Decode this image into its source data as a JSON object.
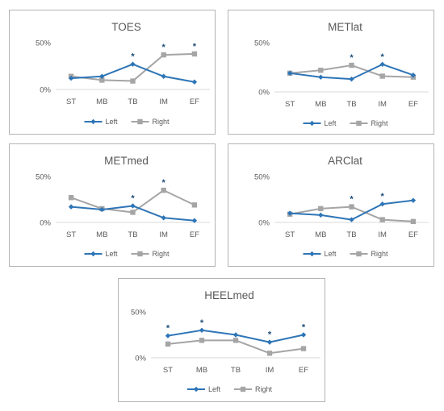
{
  "colors": {
    "left": "#2e75b6",
    "right": "#a5a5a5",
    "star": "#1f4e79",
    "axis": "#d9d9d9",
    "text": "#595959"
  },
  "chart_data": [
    {
      "type": "line",
      "title": "TOES",
      "categories": [
        "ST",
        "MB",
        "TB",
        "IM",
        "EF"
      ],
      "yticks": [
        "0%",
        "50%"
      ],
      "ylim": [
        0,
        0.5
      ],
      "grid": false,
      "legend": "bottom",
      "series": [
        {
          "name": "Left",
          "marker": "diamond",
          "values": [
            0.12,
            0.14,
            0.27,
            0.14,
            0.08
          ]
        },
        {
          "name": "Right",
          "marker": "square",
          "values": [
            0.14,
            0.1,
            0.09,
            0.37,
            0.38
          ]
        }
      ],
      "significance": [
        false,
        false,
        true,
        true,
        true
      ],
      "star_symbol": "*"
    },
    {
      "type": "line",
      "title": "METlat",
      "categories": [
        "ST",
        "MB",
        "TB",
        "IM",
        "EF"
      ],
      "yticks": [
        "0%",
        "50%"
      ],
      "ylim": [
        0,
        0.5
      ],
      "grid": false,
      "legend": "bottom",
      "series": [
        {
          "name": "Left",
          "marker": "diamond",
          "values": [
            0.19,
            0.15,
            0.13,
            0.28,
            0.17
          ]
        },
        {
          "name": "Right",
          "marker": "square",
          "values": [
            0.19,
            0.22,
            0.27,
            0.16,
            0.15
          ]
        }
      ],
      "significance": [
        false,
        false,
        true,
        true,
        false
      ],
      "star_symbol": "*"
    },
    {
      "type": "line",
      "title": "METmed",
      "categories": [
        "ST",
        "MB",
        "TB",
        "IM",
        "EF"
      ],
      "yticks": [
        "0%",
        "50%"
      ],
      "ylim": [
        0,
        0.5
      ],
      "grid": false,
      "legend": "bottom",
      "series": [
        {
          "name": "Left",
          "marker": "diamond",
          "values": [
            0.17,
            0.14,
            0.18,
            0.05,
            0.02
          ]
        },
        {
          "name": "Right",
          "marker": "square",
          "values": [
            0.27,
            0.15,
            0.11,
            0.35,
            0.19
          ]
        }
      ],
      "significance": [
        false,
        false,
        true,
        true,
        false
      ],
      "star_symbol": "*"
    },
    {
      "type": "line",
      "title": "ARClat",
      "categories": [
        "ST",
        "MB",
        "TB",
        "IM",
        "EF"
      ],
      "yticks": [
        "0%",
        "50%"
      ],
      "ylim": [
        0,
        0.5
      ],
      "grid": false,
      "legend": "bottom",
      "series": [
        {
          "name": "Left",
          "marker": "diamond",
          "values": [
            0.1,
            0.08,
            0.03,
            0.2,
            0.24
          ]
        },
        {
          "name": "Right",
          "marker": "square",
          "values": [
            0.09,
            0.15,
            0.17,
            0.03,
            0.01
          ]
        }
      ],
      "significance": [
        false,
        false,
        true,
        true,
        false
      ],
      "star_symbol": "*"
    },
    {
      "type": "line",
      "title": "HEELmed",
      "categories": [
        "ST",
        "MB",
        "TB",
        "IM",
        "EF"
      ],
      "yticks": [
        "0%",
        "50%"
      ],
      "ylim": [
        0,
        0.5
      ],
      "grid": false,
      "legend": "bottom",
      "series": [
        {
          "name": "Left",
          "marker": "diamond",
          "values": [
            0.24,
            0.3,
            0.25,
            0.17,
            0.25
          ]
        },
        {
          "name": "Right",
          "marker": "square",
          "values": [
            0.15,
            0.19,
            0.19,
            0.05,
            0.1
          ]
        }
      ],
      "significance": [
        true,
        true,
        false,
        true,
        true
      ],
      "star_symbol": "*"
    }
  ]
}
